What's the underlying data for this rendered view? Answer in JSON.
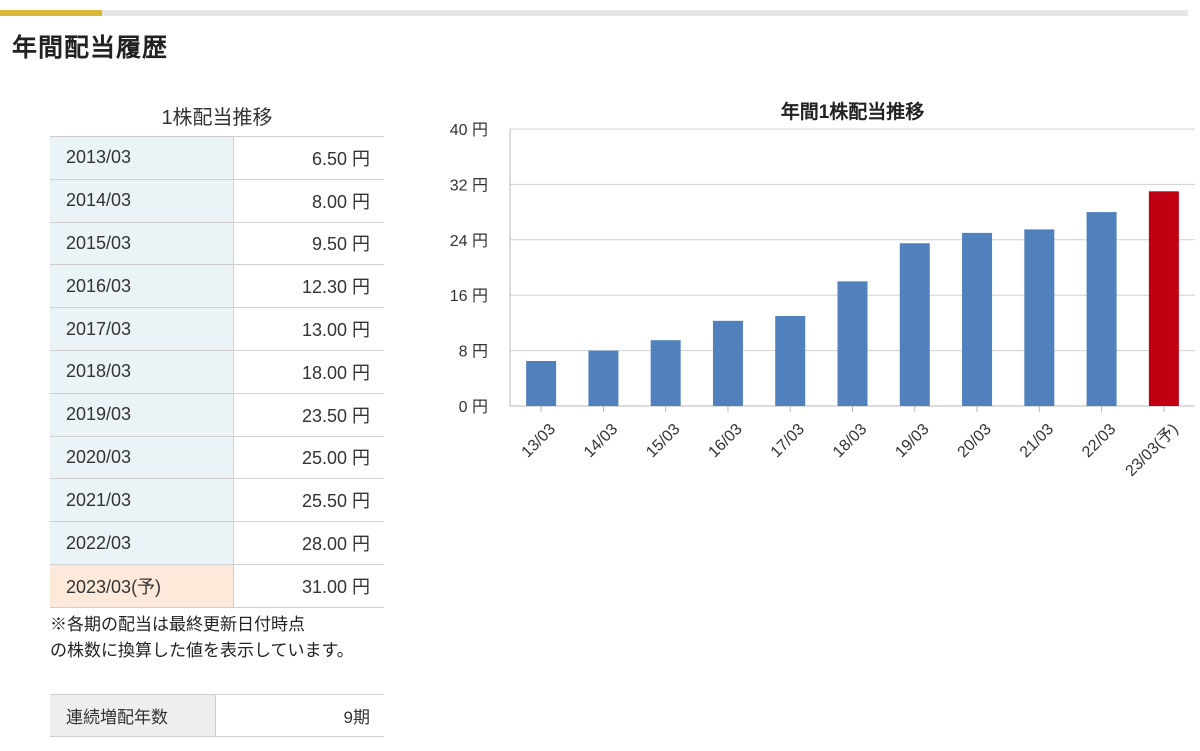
{
  "section": {
    "title": "年間配当履歴"
  },
  "dividend_table": {
    "title": "1株配当推移",
    "rows": [
      {
        "period": "2013/03",
        "amount": "6.50 円"
      },
      {
        "period": "2014/03",
        "amount": "8.00 円"
      },
      {
        "period": "2015/03",
        "amount": "9.50 円"
      },
      {
        "period": "2016/03",
        "amount": "12.30 円"
      },
      {
        "period": "2017/03",
        "amount": "13.00 円"
      },
      {
        "period": "2018/03",
        "amount": "18.00 円"
      },
      {
        "period": "2019/03",
        "amount": "23.50 円"
      },
      {
        "period": "2020/03",
        "amount": "25.00 円"
      },
      {
        "period": "2021/03",
        "amount": "25.50 円"
      },
      {
        "period": "2022/03",
        "amount": "28.00 円"
      },
      {
        "period": "2023/03(予)",
        "amount": "31.00 円"
      }
    ],
    "note": "※各期の配当は最終更新日付時点\nの株数に換算した値を表示しています。"
  },
  "streak": {
    "label": "連続増配年数",
    "value": "9期"
  },
  "colors": {
    "accent": "#d8b93a",
    "bar": "#5081bd",
    "forecast_bar": "#c00012",
    "period_cell": "#eaf4f6",
    "forecast_cell": "#fde9da"
  },
  "chart_data": {
    "type": "bar",
    "title": "年間1株配当推移",
    "categories": [
      "13/03",
      "14/03",
      "15/03",
      "16/03",
      "17/03",
      "18/03",
      "19/03",
      "20/03",
      "21/03",
      "22/03",
      "23/03(予)"
    ],
    "values": [
      6.5,
      8.0,
      9.5,
      12.3,
      13.0,
      18.0,
      23.5,
      25.0,
      25.5,
      28.0,
      31.0
    ],
    "forecast_index": 10,
    "y_ticks": [
      "0 円",
      "8 円",
      "16 円",
      "24 円",
      "32 円",
      "40 円"
    ],
    "ylim": [
      0,
      40
    ],
    "grid": true,
    "legend": "none"
  }
}
